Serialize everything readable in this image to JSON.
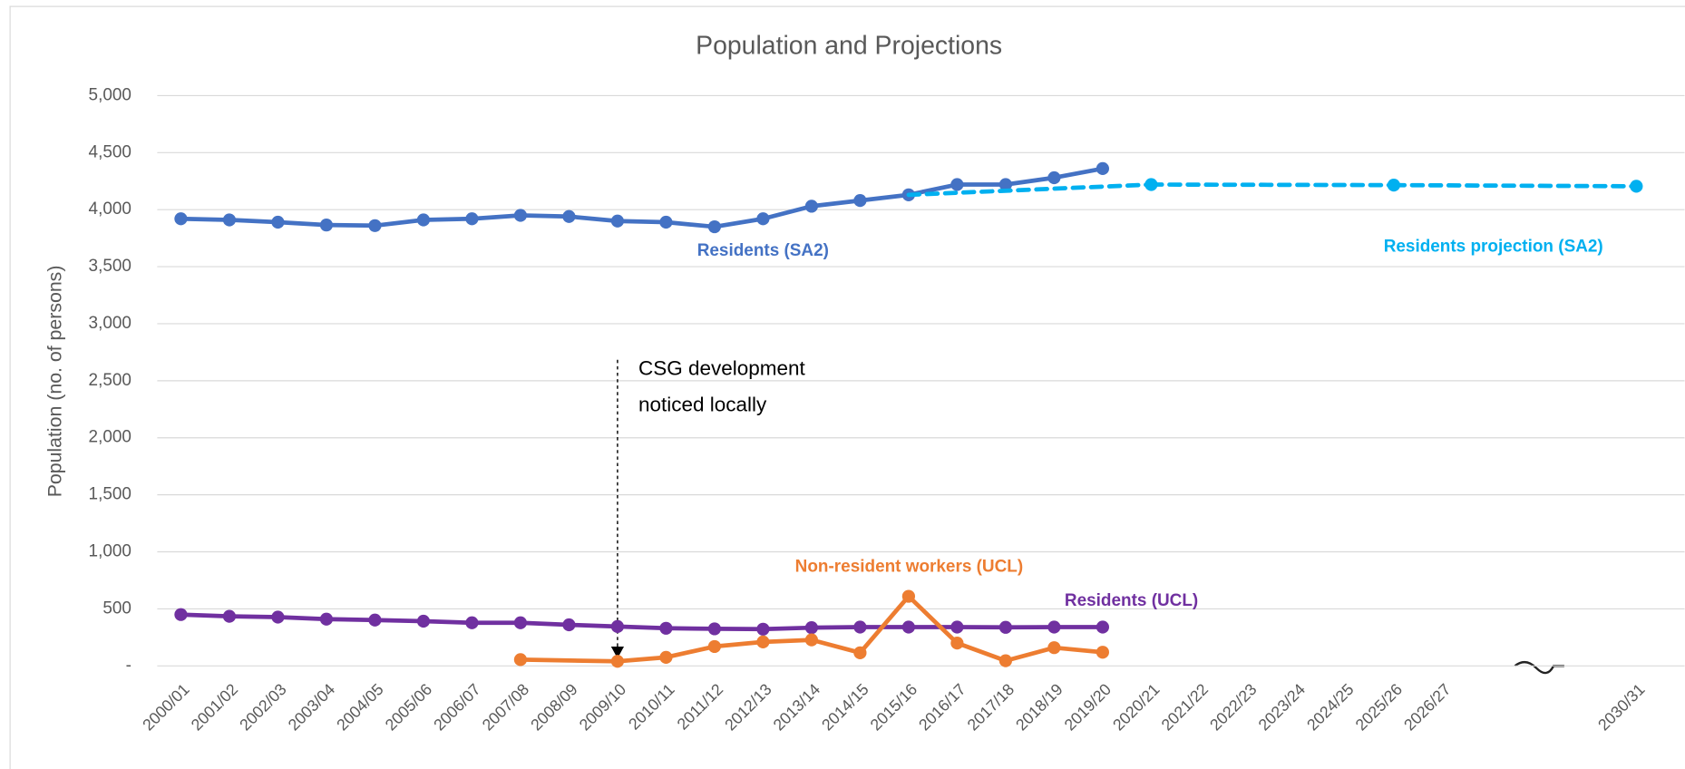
{
  "chart_data": {
    "type": "line",
    "title": "Population and Projections",
    "y_label": "Population (no. of persons)",
    "categories": [
      "2000/01",
      "2001/02",
      "2002/03",
      "2003/04",
      "2004/05",
      "2005/06",
      "2006/07",
      "2007/08",
      "2008/09",
      "2009/10",
      "2010/11",
      "2011/12",
      "2012/13",
      "2013/14",
      "2014/15",
      "2015/16",
      "2016/17",
      "2017/18",
      "2018/19",
      "2019/20",
      "2020/21",
      "2021/22",
      "2022/23",
      "2023/24",
      "2024/25",
      "2025/26",
      "2026/27",
      null,
      null,
      null,
      "2030/31"
    ],
    "series": [
      {
        "name": "Residents (SA2)",
        "color": "#4472c4",
        "dashed": false,
        "values": [
          3920,
          3910,
          3890,
          3865,
          3860,
          3910,
          3920,
          3950,
          3940,
          3900,
          3890,
          3850,
          3920,
          4030,
          4080,
          4130,
          4220,
          4220,
          4280,
          4360,
          null,
          null,
          null,
          null,
          null,
          null,
          null,
          null,
          null,
          null,
          null
        ]
      },
      {
        "name": "Residents projection (SA2)",
        "color": "#00b0f0",
        "dashed": true,
        "values": [
          null,
          null,
          null,
          null,
          null,
          null,
          null,
          null,
          null,
          null,
          null,
          null,
          null,
          null,
          null,
          4130,
          null,
          null,
          null,
          null,
          4220,
          null,
          null,
          null,
          null,
          4215,
          null,
          null,
          null,
          null,
          4205
        ]
      },
      {
        "name": "Residents (UCL)",
        "color": "#7030a0",
        "dashed": false,
        "values": [
          450,
          435,
          428,
          410,
          402,
          392,
          378,
          378,
          360,
          345,
          330,
          325,
          322,
          335,
          340,
          340,
          340,
          338,
          340,
          340,
          null,
          null,
          null,
          null,
          null,
          null,
          null,
          null,
          null,
          null,
          null
        ]
      },
      {
        "name": "Non-resident workers (UCL)",
        "color": "#ed7d31",
        "dashed": false,
        "values": [
          null,
          null,
          null,
          null,
          null,
          null,
          null,
          55,
          null,
          40,
          75,
          170,
          210,
          228,
          115,
          610,
          200,
          45,
          160,
          120,
          null,
          null,
          null,
          null,
          null,
          null,
          null,
          null,
          null,
          null,
          null
        ]
      }
    ],
    "connect_gaps": true,
    "ylim": [
      0,
      5000
    ],
    "yticks": [
      {
        "value": 0,
        "label": "-"
      },
      500,
      {
        "value": 1000,
        "label": "1,000"
      },
      {
        "value": 1500,
        "label": "1,500"
      },
      {
        "value": 2000,
        "label": "2,000"
      },
      {
        "value": 2500,
        "label": "2,500"
      },
      {
        "value": 3000,
        "label": "3,000"
      },
      {
        "value": 3500,
        "label": "3,500"
      },
      {
        "value": 4000,
        "label": "4,000"
      },
      {
        "value": 4500,
        "label": "4,500"
      },
      {
        "value": 5000,
        "label": "5,000"
      }
    ],
    "grid": true,
    "annotation": {
      "lines": [
        "CSG development",
        "noticed locally"
      ],
      "category": "2009/10"
    }
  }
}
